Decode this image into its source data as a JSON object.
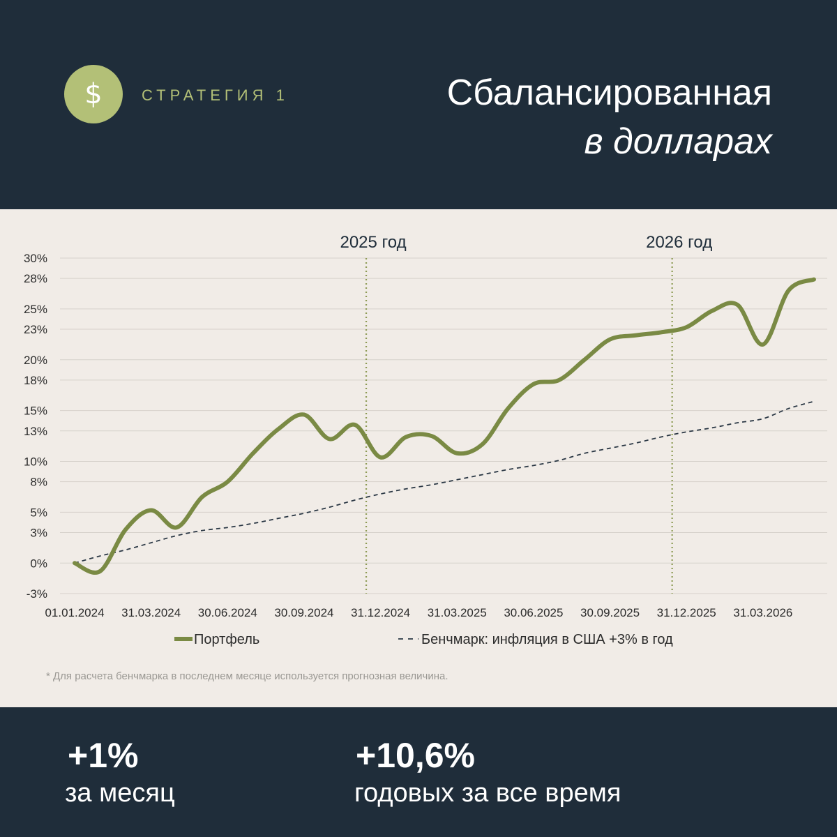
{
  "header": {
    "strategy_label": "СТРАТЕГИЯ 1",
    "title_line1": "Сбалансированная",
    "title_line2": "в долларах",
    "badge_icon": "dollar-icon"
  },
  "colors": {
    "dark_bg": "#1f2d3a",
    "panel_bg": "#f1ece7",
    "portfolio": "#7a8a44",
    "benchmark": "#2a3744",
    "accent": "#b3c077"
  },
  "chart_data": {
    "type": "line",
    "ylim": [
      -3,
      30
    ],
    "y_ticks": [
      -3,
      0,
      3,
      5,
      8,
      10,
      13,
      15,
      18,
      20,
      23,
      25,
      28,
      30
    ],
    "y_tick_labels": [
      "-3%",
      "0%",
      "3%",
      "5%",
      "8%",
      "10%",
      "13%",
      "15%",
      "18%",
      "20%",
      "23%",
      "25%",
      "28%",
      "30%"
    ],
    "x_tick_labels": [
      "01.01.2024",
      "31.03.2024",
      "30.06.2024",
      "30.09.2024",
      "31.12.2024",
      "31.03.2025",
      "30.06.2025",
      "30.09.2025",
      "31.12.2025",
      "31.03.2026"
    ],
    "x_months": [
      "2024-01",
      "2024-02",
      "2024-03",
      "2024-04",
      "2024-05",
      "2024-06",
      "2024-07",
      "2024-08",
      "2024-09",
      "2024-10",
      "2024-11",
      "2024-12",
      "2025-01",
      "2025-02",
      "2025-03",
      "2025-04",
      "2025-05",
      "2025-06",
      "2025-07",
      "2025-08",
      "2025-09",
      "2025-10",
      "2025-11",
      "2025-12",
      "2026-01",
      "2026-02",
      "2026-03",
      "2026-04",
      "2026-05",
      "2026-06"
    ],
    "annotations": [
      {
        "label": "2025 год",
        "x": "2024-12"
      },
      {
        "label": "2026 год",
        "x": "2025-12"
      }
    ],
    "series": [
      {
        "name": "Портфель",
        "style": "solid",
        "values": [
          0,
          -0.8,
          3.3,
          5.2,
          3.5,
          6.5,
          8.0,
          10.8,
          13.2,
          14.6,
          12.2,
          13.6,
          10.4,
          12.4,
          12.5,
          10.8,
          11.7,
          15.2,
          17.6,
          18.0,
          20.0,
          22.0,
          22.4,
          22.7,
          23.2,
          24.8,
          25.4,
          21.5,
          26.8,
          27.9
        ]
      },
      {
        "name": "Бенчмарк: инфляция в США +3% в год",
        "style": "dashed",
        "values": [
          0,
          0.7,
          1.3,
          2.0,
          2.7,
          3.2,
          3.5,
          3.9,
          4.4,
          4.9,
          5.5,
          6.2,
          6.8,
          7.3,
          7.7,
          8.2,
          8.7,
          9.2,
          9.6,
          10.1,
          10.8,
          11.3,
          11.8,
          12.4,
          12.9,
          13.3,
          13.8,
          14.2,
          15.2,
          15.9
        ]
      }
    ],
    "legend_position": "bottom",
    "footnote": "* Для расчета бенчмарка в последнем месяце используется прогнозная величина."
  },
  "footer": {
    "stat1_value": "+1%",
    "stat1_label": "за месяц",
    "stat2_value": "+10,6%",
    "stat2_label": "годовых за все время"
  }
}
